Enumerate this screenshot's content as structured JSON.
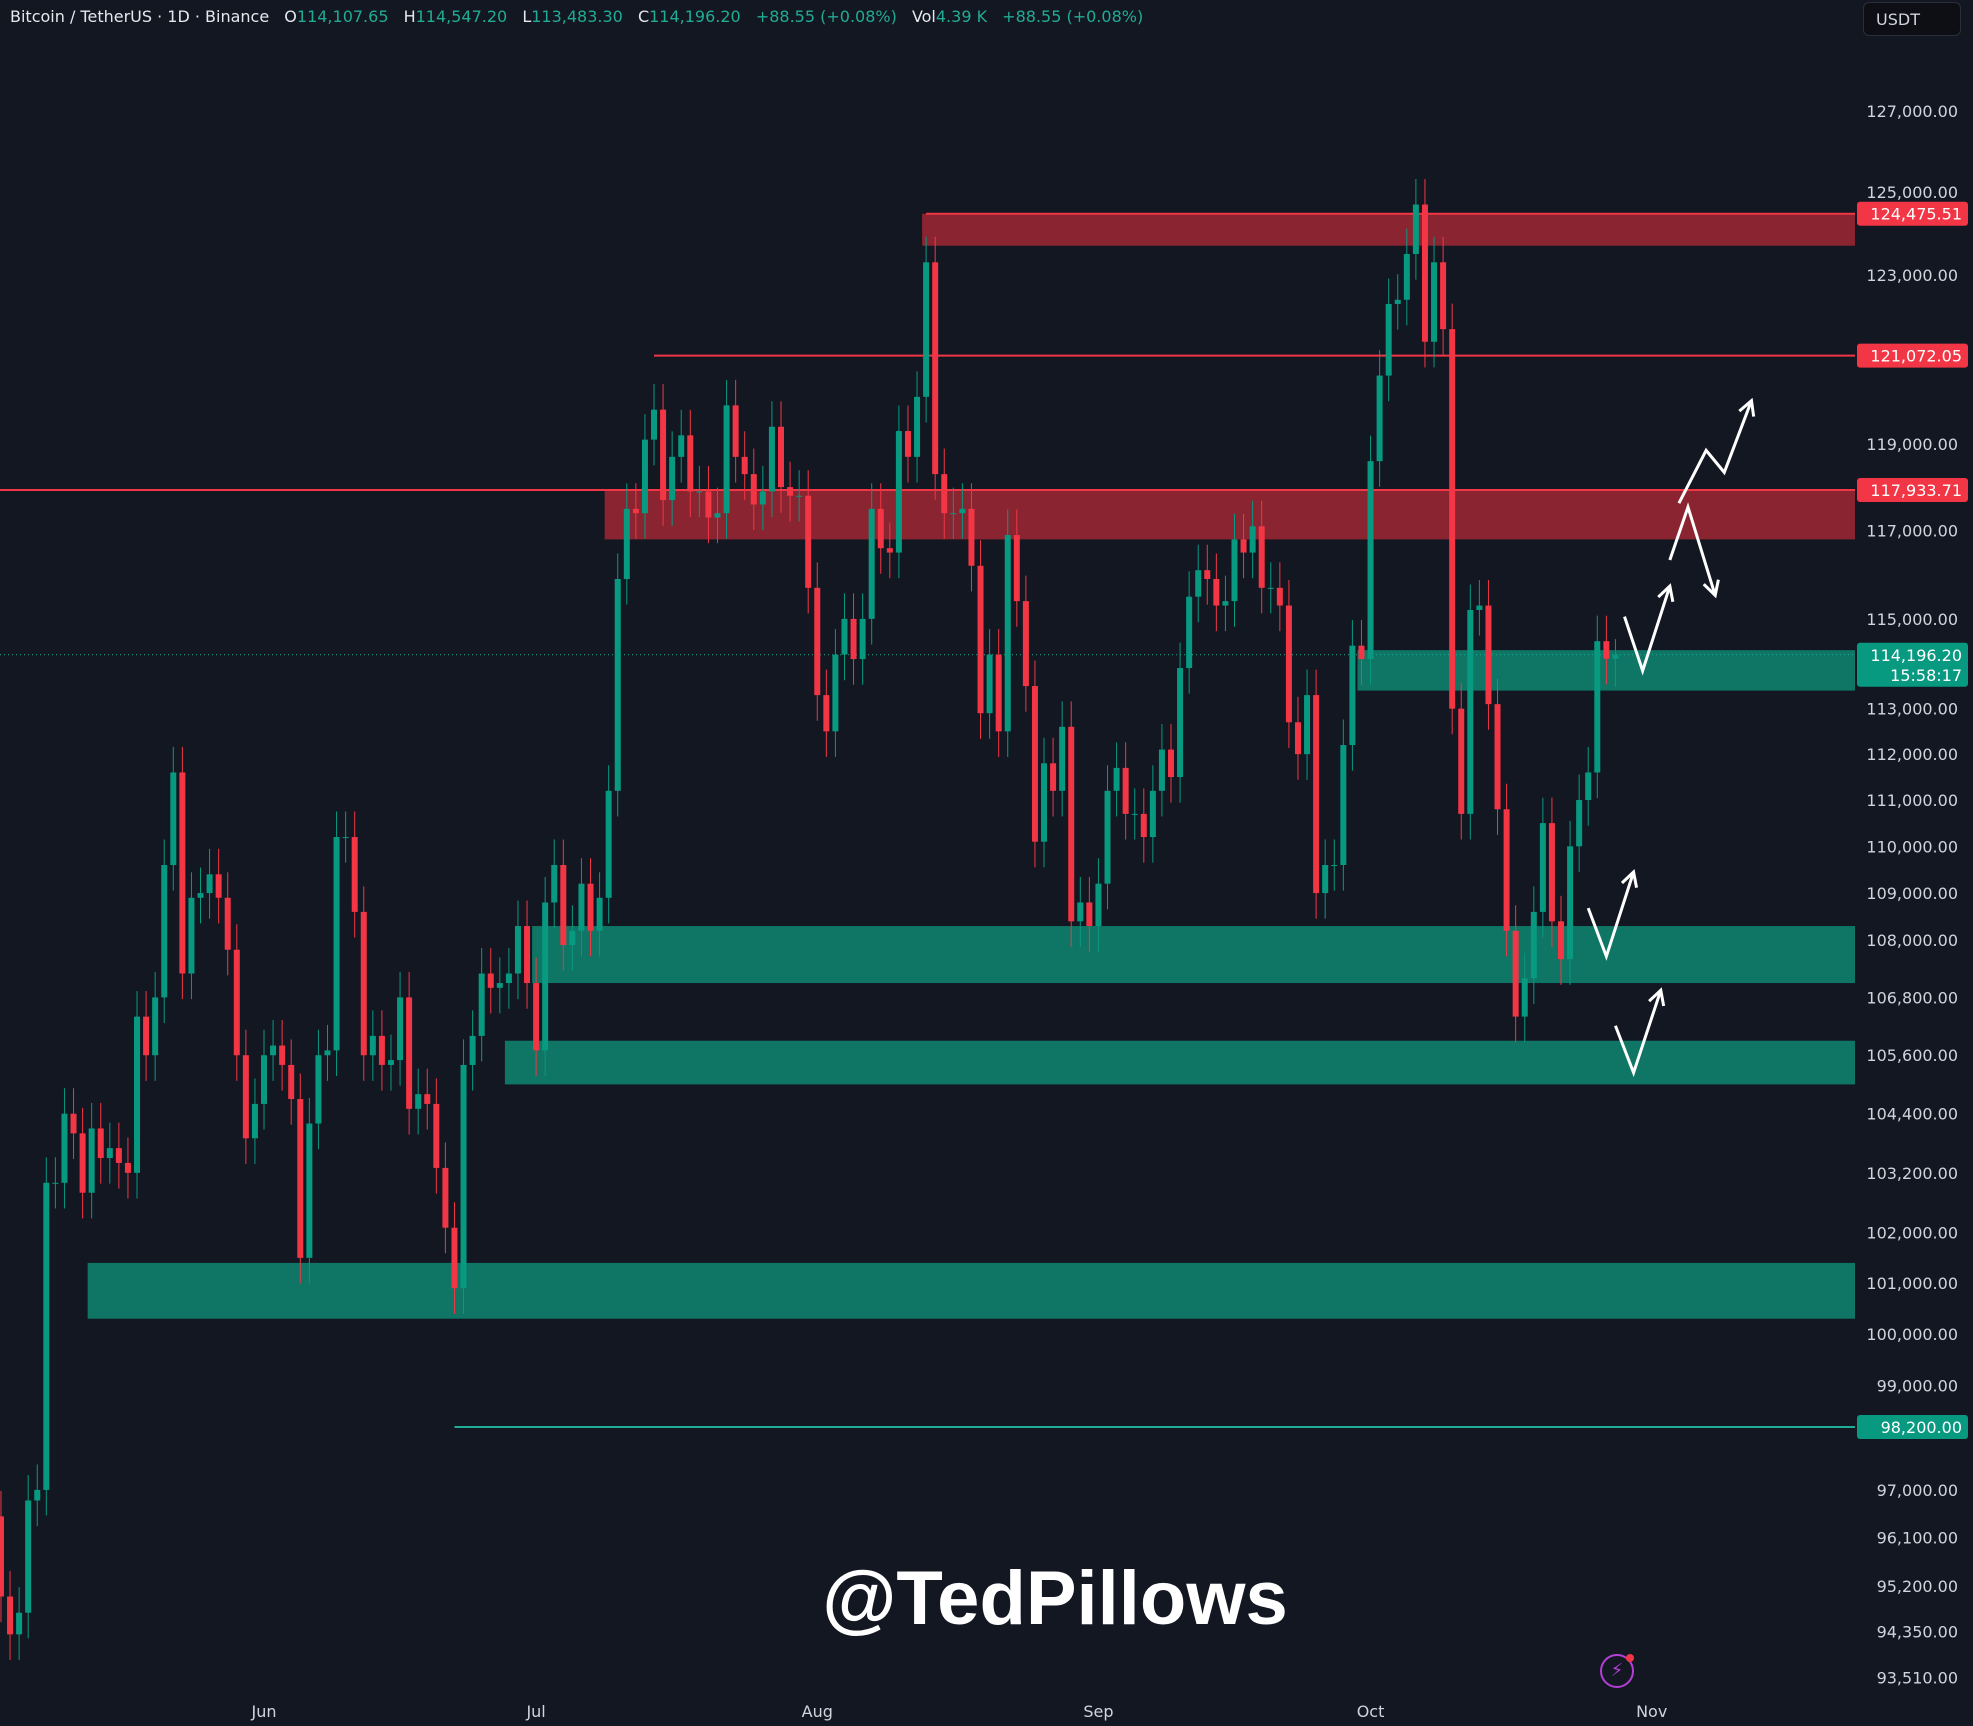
{
  "header": {
    "symbol": "Bitcoin / TetherUS · 1D · Binance",
    "o_label": "O",
    "o": "114,107.65",
    "h_label": "H",
    "h": "114,547.20",
    "l_label": "L",
    "l": "113,483.30",
    "c_label": "C",
    "c": "114,196.20",
    "change": "+88.55 (+0.08%)",
    "vol_label": "Vol",
    "vol": "4.39 K",
    "vol_change": "+88.55 (+0.08%)"
  },
  "currency_button": "USDT",
  "watermark": "@TedPillows",
  "colors": {
    "background": "#131722",
    "up": "#089981",
    "down": "#f23645",
    "resistance_zone": "#8a2430",
    "support_zone": "#0f7564"
  },
  "chart_data": {
    "type": "candlestick",
    "scale": "log",
    "first_candle": "May 3",
    "first_open": 96500,
    "closes": {
      "May": [
        95000,
        94300,
        94700,
        96800,
        97000,
        103000,
        103000,
        104400,
        104000,
        102800,
        104100,
        103500,
        103700,
        103400,
        103200,
        106400,
        105600,
        106800,
        109600,
        111600,
        107300,
        108900,
        109000,
        109400,
        108900,
        107800,
        105600,
        103900,
        104600
      ],
      "Jun": [
        105600,
        105800,
        105400,
        104700,
        101500,
        104200,
        105600,
        105700,
        110200,
        110200,
        108600,
        105600,
        106000,
        105400,
        105500,
        106800,
        104500,
        104800,
        104600,
        103300,
        102100,
        100900,
        105400,
        106000,
        107300,
        107000,
        107100,
        107300,
        108300,
        107100
      ],
      "Jul": [
        105700,
        108800,
        109600,
        107900,
        108200,
        109200,
        108200,
        108900,
        111200,
        115900,
        117500,
        117400,
        119100,
        119800,
        117700,
        118700,
        119200,
        117900,
        117900,
        117300,
        117400,
        119900,
        118700,
        118300,
        117600,
        117900,
        119400,
        118000,
        117800,
        117800,
        115700
      ],
      "Aug": [
        113300,
        112500,
        114200,
        115000,
        114100,
        115000,
        117500,
        116600,
        116500,
        119300,
        118700,
        120100,
        123300,
        118300,
        117400,
        117400,
        117500,
        116200,
        112900,
        114200,
        112500,
        116900,
        115400,
        113500,
        110100,
        111800,
        111200,
        112600,
        108400,
        108800,
        108300
      ],
      "Sep": [
        109200,
        111200,
        111700,
        110700,
        110700,
        110200,
        111200,
        112100,
        111500,
        113900,
        115500,
        116100,
        115900,
        115300,
        115400,
        116800,
        116500,
        117100,
        115700,
        115700,
        115300,
        112700,
        112000,
        113300,
        109000,
        109600,
        109600,
        112200,
        114400,
        114100
      ],
      "Oct": [
        118600,
        120600,
        122300,
        122400,
        123500,
        124700,
        121400,
        123300,
        121700,
        113000,
        110700,
        115200,
        115300,
        113100,
        110800,
        108200,
        106400,
        107200,
        108600,
        110500,
        108400,
        107600,
        110000,
        111000,
        111600,
        114500,
        114107.65,
        114196.2
      ]
    },
    "last_candle": {
      "o": 114107.65,
      "h": 114547.2,
      "l": 113483.3,
      "c": 114196.2
    },
    "y_ticks": [
      "127,000.00",
      "125,000.00",
      "123,000.00",
      "119,000.00",
      "117,000.00",
      "115,000.00",
      "113,000.00",
      "112,000.00",
      "111,000.00",
      "110,000.00",
      "109,000.00",
      "108,000.00",
      "106,800.00",
      "105,600.00",
      "104,400.00",
      "103,200.00",
      "102,000.00",
      "101,000.00",
      "100,000.00",
      "99,000.00",
      "97,000.00",
      "96,100.00",
      "95,200.00",
      "94,350.00",
      "93,510.00"
    ],
    "x_ticks": [
      "Jun",
      "Jul",
      "Aug",
      "Sep",
      "Oct",
      "Nov"
    ],
    "ylim": [
      93510,
      127000
    ],
    "current_price": {
      "label": "114,196.20",
      "countdown": "15:58:17",
      "value": 114196.2
    },
    "levels": [
      {
        "label": "124,475.51",
        "value": 124475.51,
        "from": "Aug 13",
        "kind": "resistance"
      },
      {
        "label": "121,072.05",
        "value": 121072.05,
        "from": "Jul 14",
        "kind": "resistance"
      },
      {
        "label": "117,933.71",
        "value": 117933.71,
        "from": "May 3",
        "kind": "resistance"
      },
      {
        "label": "98,200.00",
        "value": 98200,
        "from": "Jun 22",
        "kind": "support"
      }
    ],
    "zones": [
      {
        "kind": "resistance",
        "top": 124475.51,
        "bottom": 123700,
        "from": "Aug 13"
      },
      {
        "kind": "resistance",
        "top": 117933.71,
        "bottom": 116800,
        "from": "Jul 9"
      },
      {
        "kind": "support",
        "top": 114300,
        "bottom": 113400,
        "from": "Sep 30"
      },
      {
        "kind": "support",
        "top": 108300,
        "bottom": 107100,
        "from": "Jul 1"
      },
      {
        "kind": "support",
        "top": 105900,
        "bottom": 105000,
        "from": "Jun 28"
      },
      {
        "kind": "support",
        "top": 101400,
        "bottom": 100300,
        "from": "May 13"
      }
    ],
    "projections": [
      [
        [
          "Oct 29",
          115050
        ],
        [
          "Oct 31",
          113840
        ],
        [
          "Nov 3",
          115740
        ]
      ],
      [
        [
          "Nov 3",
          116330
        ],
        [
          "Nov 5",
          117540
        ],
        [
          "Nov 8",
          115530
        ]
      ],
      [
        [
          "Nov 4",
          117630
        ],
        [
          "Nov 7",
          118850
        ],
        [
          "Nov 9",
          118340
        ],
        [
          "Nov 12",
          120010
        ]
      ],
      [
        [
          "Oct 25",
          108680
        ],
        [
          "Oct 27",
          107660
        ],
        [
          "Oct 30",
          109450
        ]
      ],
      [
        [
          "Oct 28",
          106210
        ],
        [
          "Oct 30",
          105240
        ],
        [
          "Nov 2",
          106950
        ]
      ]
    ]
  }
}
